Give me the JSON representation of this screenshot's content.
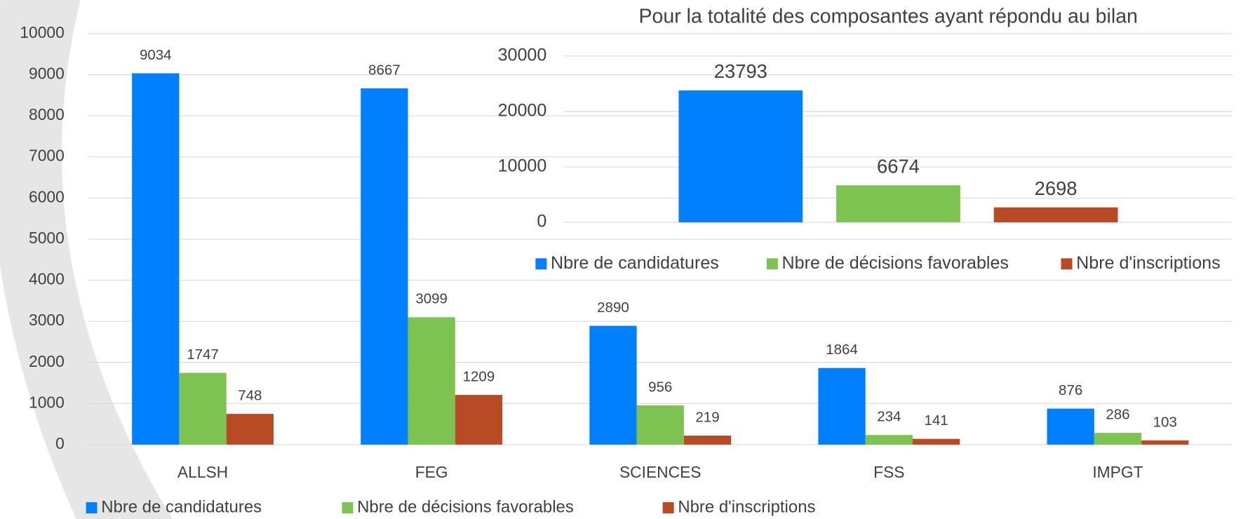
{
  "chart_data": [
    {
      "type": "bar",
      "categories": [
        "ALLSH",
        "FEG",
        "SCIENCES",
        "FSS",
        "IMPGT"
      ],
      "series": [
        {
          "name": "Nbre de candidatures",
          "color": "#007fff",
          "values": [
            9034,
            8667,
            2890,
            1864,
            876
          ]
        },
        {
          "name": "Nbre de décisions favorables",
          "color": "#7dc352",
          "values": [
            1747,
            3099,
            956,
            234,
            286
          ]
        },
        {
          "name": "Nbre d'inscriptions",
          "color": "#b84a25",
          "values": [
            748,
            1209,
            219,
            141,
            103
          ]
        }
      ],
      "ylim": [
        0,
        10000
      ],
      "yticks": [
        0,
        1000,
        2000,
        3000,
        4000,
        5000,
        6000,
        7000,
        8000,
        9000,
        10000
      ],
      "grid": true,
      "legend": "bottom"
    },
    {
      "type": "bar",
      "title": "Pour la totalité des composantes ayant répondu au bilan",
      "categories": [
        null
      ],
      "series": [
        {
          "name": "Nbre de candidatures",
          "color": "#007fff",
          "values": [
            23793
          ]
        },
        {
          "name": "Nbre de décisions favorables",
          "color": "#7dc352",
          "values": [
            6674
          ]
        },
        {
          "name": "Nbre d'inscriptions",
          "color": "#b84a25",
          "values": [
            2698
          ]
        }
      ],
      "ylim": [
        0,
        30000
      ],
      "yticks": [
        0,
        10000,
        20000,
        30000
      ],
      "grid": true,
      "legend": "bottom"
    }
  ]
}
